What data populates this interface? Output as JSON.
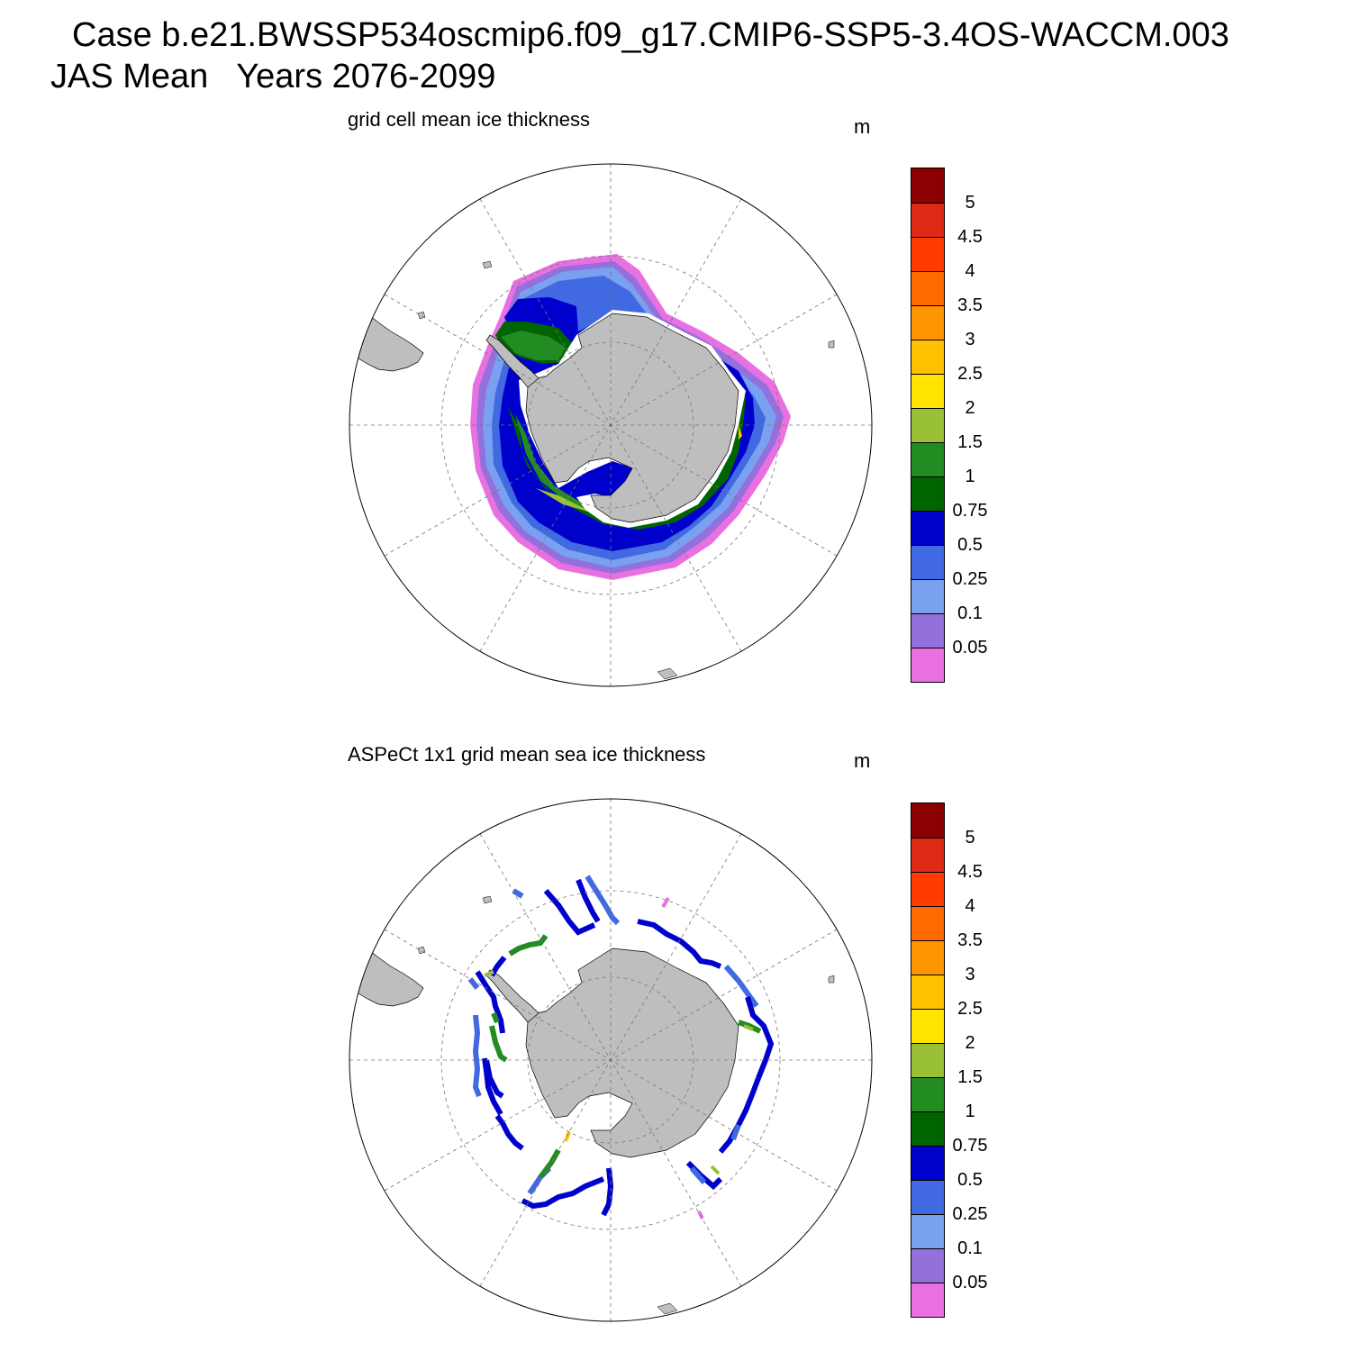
{
  "header": {
    "case_line": "Case b.e21.BWSSP534oscmip6.f09_g17.CMIP6-SSP5-3.4OS-WACCM.003",
    "period_line": "JAS Mean   Years 2076-2099"
  },
  "panels": [
    {
      "title": "grid cell mean ice thickness",
      "units": "m"
    },
    {
      "title": "ASPeCt 1x1 grid mean sea ice thickness",
      "units": "m"
    }
  ],
  "colorbar": {
    "colors": [
      "#8b0000",
      "#dd2a14",
      "#ff3b00",
      "#ff6a00",
      "#ff9500",
      "#ffc000",
      "#ffe400",
      "#9ac036",
      "#228b22",
      "#006400",
      "#0000cd",
      "#4169e1",
      "#7aa0f0",
      "#9370db",
      "#e870e0"
    ],
    "labels": [
      "5",
      "4.5",
      "4",
      "3.5",
      "3",
      "2.5",
      "2",
      "1.5",
      "1",
      "0.75",
      "0.5",
      "0.25",
      "0.1",
      "0.05"
    ]
  },
  "land_color": "#bebebe"
}
